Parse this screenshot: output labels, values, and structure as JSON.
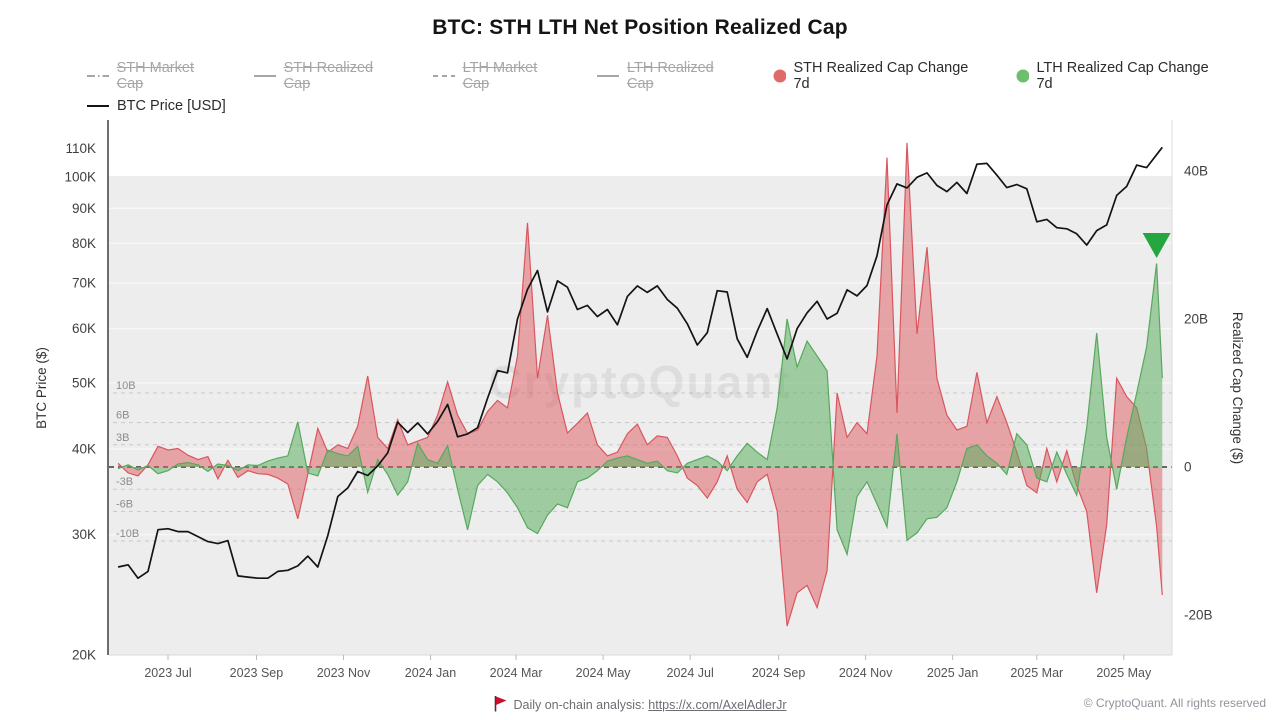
{
  "title": "BTC: STH LTH Net Position Realized Cap",
  "legend": {
    "items": [
      {
        "label": "STH Market Cap",
        "state": "disabled",
        "marker": "line-dashdot"
      },
      {
        "label": "STH Realized Cap",
        "state": "disabled",
        "marker": "line-solid"
      },
      {
        "label": "LTH Market Cap",
        "state": "disabled",
        "marker": "line-dashed"
      },
      {
        "label": "LTH Realized Cap",
        "state": "disabled",
        "marker": "line-solid"
      },
      {
        "label": "STH Realized Cap Change 7d",
        "state": "active",
        "marker": "circle-red"
      },
      {
        "label": "LTH Realized Cap Change 7d",
        "state": "active",
        "marker": "circle-green"
      },
      {
        "label": "BTC Price [USD]",
        "state": "active",
        "marker": "line-black"
      }
    ]
  },
  "watermark": "CryptoQuant",
  "footer": {
    "note": "Daily on-chain analysis:",
    "link": "https://x.com/AxelAdlerJr",
    "copyright": "© CryptoQuant. All rights reserved",
    "flag_icon": "red-flag"
  },
  "colors": {
    "sth_red_stroke": "#d9565e",
    "sth_red_fill": "rgba(222,89,96,0.5)",
    "lth_green_stroke": "#57a85e",
    "lth_green_fill": "rgba(95,174,99,0.55)",
    "price_line": "#141414",
    "signal_triangle": "#26a641",
    "plot_band": "#ededed",
    "grid_white": "#f8f8f8",
    "grid_dashed": "#c8c8c8",
    "legend_red_dot": "#e06a6a",
    "legend_green_dot": "#6cbf6c",
    "disabled_gray": "#a6a6a6"
  },
  "axes": {
    "left": {
      "title": "BTC Price ($)",
      "scale": "log",
      "ticks": [
        {
          "label": "110K",
          "value": 110000
        },
        {
          "label": "100K",
          "value": 100000
        },
        {
          "label": "90K",
          "value": 90000
        },
        {
          "label": "80K",
          "value": 80000
        },
        {
          "label": "70K",
          "value": 70000
        },
        {
          "label": "60K",
          "value": 60000
        },
        {
          "label": "50K",
          "value": 50000
        },
        {
          "label": "40K",
          "value": 40000
        },
        {
          "label": "30K",
          "value": 30000
        },
        {
          "label": "20K",
          "value": 20000
        }
      ]
    },
    "right": {
      "title": "Realized Cap Change ($)",
      "scale": "linear",
      "ticks": [
        {
          "label": "40B",
          "value": 40
        },
        {
          "label": "20B",
          "value": 20
        },
        {
          "label": "0",
          "value": 0
        },
        {
          "label": "-20B",
          "value": -20
        }
      ]
    },
    "inner_gridlines": [
      {
        "label": "10B",
        "value": 10
      },
      {
        "label": "6B",
        "value": 6
      },
      {
        "label": "3B",
        "value": 3
      },
      {
        "label": "-3B",
        "value": -3
      },
      {
        "label": "-6B",
        "value": -6
      },
      {
        "label": "-10B",
        "value": -10
      }
    ],
    "x": {
      "ticks": [
        {
          "label": "2023 Jul",
          "date": "2023-07-01"
        },
        {
          "label": "2023 Sep",
          "date": "2023-09-01"
        },
        {
          "label": "2023 Nov",
          "date": "2023-11-01"
        },
        {
          "label": "2024 Jan",
          "date": "2024-01-01"
        },
        {
          "label": "2024 Mar",
          "date": "2024-03-01"
        },
        {
          "label": "2024 May",
          "date": "2024-05-01"
        },
        {
          "label": "2024 Jul",
          "date": "2024-07-01"
        },
        {
          "label": "2024 Sep",
          "date": "2024-09-01"
        },
        {
          "label": "2024 Nov",
          "date": "2024-11-01"
        },
        {
          "label": "2025 Jan",
          "date": "2025-01-01"
        },
        {
          "label": "2025 Mar",
          "date": "2025-03-01"
        },
        {
          "label": "2025 May",
          "date": "2025-05-01"
        }
      ]
    }
  },
  "chart_data": {
    "type": "mixed",
    "note": "weekly resolution; price in USD thousands (log left axis 20K-110K); sth/lth in billions USD (linear right axis, 7d realized-cap change areas)",
    "x_range": [
      "2023-05-27",
      "2025-05-28"
    ],
    "dates": [
      "2023-05-27",
      "2023-06-03",
      "2023-06-10",
      "2023-06-17",
      "2023-06-24",
      "2023-07-01",
      "2023-07-08",
      "2023-07-15",
      "2023-07-22",
      "2023-07-29",
      "2023-08-05",
      "2023-08-12",
      "2023-08-19",
      "2023-08-26",
      "2023-09-02",
      "2023-09-09",
      "2023-09-16",
      "2023-09-23",
      "2023-09-30",
      "2023-10-07",
      "2023-10-14",
      "2023-10-21",
      "2023-10-28",
      "2023-11-04",
      "2023-11-11",
      "2023-11-18",
      "2023-11-25",
      "2023-12-02",
      "2023-12-09",
      "2023-12-16",
      "2023-12-23",
      "2023-12-30",
      "2024-01-06",
      "2024-01-13",
      "2024-01-20",
      "2024-01-27",
      "2024-02-03",
      "2024-02-10",
      "2024-02-17",
      "2024-02-24",
      "2024-03-02",
      "2024-03-09",
      "2024-03-16",
      "2024-03-23",
      "2024-03-30",
      "2024-04-06",
      "2024-04-13",
      "2024-04-20",
      "2024-04-27",
      "2024-05-04",
      "2024-05-11",
      "2024-05-18",
      "2024-05-25",
      "2024-06-01",
      "2024-06-08",
      "2024-06-15",
      "2024-06-22",
      "2024-06-29",
      "2024-07-06",
      "2024-07-13",
      "2024-07-20",
      "2024-07-27",
      "2024-08-03",
      "2024-08-10",
      "2024-08-17",
      "2024-08-24",
      "2024-08-31",
      "2024-09-07",
      "2024-09-14",
      "2024-09-21",
      "2024-09-28",
      "2024-10-05",
      "2024-10-12",
      "2024-10-19",
      "2024-10-26",
      "2024-11-02",
      "2024-11-09",
      "2024-11-16",
      "2024-11-23",
      "2024-11-30",
      "2024-12-07",
      "2024-12-14",
      "2024-12-21",
      "2024-12-28",
      "2025-01-04",
      "2025-01-11",
      "2025-01-18",
      "2025-01-25",
      "2025-02-01",
      "2025-02-08",
      "2025-02-15",
      "2025-02-22",
      "2025-03-01",
      "2025-03-08",
      "2025-03-15",
      "2025-03-22",
      "2025-03-29",
      "2025-04-05",
      "2025-04-12",
      "2025-04-19",
      "2025-04-26",
      "2025-05-03",
      "2025-05-10",
      "2025-05-17",
      "2025-05-24",
      "2025-05-28"
    ],
    "series": [
      {
        "name": "BTC Price [USD]",
        "unit": "K USD",
        "values": [
          26.9,
          27.1,
          25.9,
          26.5,
          30.5,
          30.6,
          30.3,
          30.3,
          29.8,
          29.3,
          29.1,
          29.4,
          26.1,
          26.0,
          25.9,
          25.9,
          26.5,
          26.6,
          27.0,
          27.9,
          26.9,
          29.9,
          34.1,
          35.1,
          37.1,
          36.6,
          37.8,
          39.5,
          43.8,
          42.3,
          43.7,
          42.1,
          43.9,
          46.5,
          41.7,
          42.1,
          43.0,
          47.5,
          52.1,
          51.7,
          62.0,
          68.5,
          73.0,
          63.5,
          70.5,
          69.0,
          64.0,
          64.9,
          62.5,
          64.0,
          60.8,
          66.9,
          69.3,
          67.8,
          69.3,
          66.2,
          64.3,
          61.0,
          56.8,
          59.2,
          68.2,
          67.9,
          58.0,
          54.5,
          59.5,
          64.2,
          58.9,
          54.2,
          60.0,
          63.3,
          65.8,
          62.0,
          63.2,
          68.4,
          67.0,
          69.4,
          76.7,
          91.0,
          97.7,
          96.4,
          99.9,
          101.4,
          97.2,
          95.2,
          98.2,
          94.6,
          104.4,
          104.7,
          100.6,
          96.5,
          97.5,
          96.1,
          86.0,
          86.7,
          84.3,
          84.0,
          82.6,
          79.5,
          83.5,
          85.1,
          94.0,
          96.9,
          104.1,
          103.2,
          107.8,
          110.5
        ]
      },
      {
        "name": "STH Realized Cap Change 7d",
        "unit": "B USD",
        "values": [
          0.5,
          -0.8,
          -1.2,
          0.3,
          2.8,
          2.3,
          2.5,
          1.6,
          1.0,
          1.4,
          -1.6,
          0.9,
          -1.4,
          -0.5,
          -0.9,
          -1.0,
          -1.5,
          -2.3,
          -7.0,
          -1.0,
          5.2,
          2.0,
          3.0,
          2.5,
          5.5,
          12.3,
          4.0,
          2.5,
          6.4,
          3.0,
          3.5,
          4.0,
          7.0,
          11.5,
          7.0,
          4.5,
          5.0,
          7.5,
          9.0,
          8.0,
          15.0,
          33.0,
          12.0,
          20.5,
          10.0,
          4.6,
          5.9,
          7.3,
          3.0,
          1.5,
          2.0,
          4.5,
          5.8,
          3.0,
          4.2,
          4.0,
          1.5,
          -1.5,
          -2.5,
          -4.2,
          -2.0,
          1.5,
          -3.0,
          -4.8,
          -2.0,
          -1.0,
          -6.0,
          -21.5,
          -17.0,
          -16.0,
          -19.0,
          -14.0,
          10.0,
          4.0,
          6.0,
          4.5,
          15.0,
          41.8,
          7.3,
          43.8,
          18.0,
          29.7,
          12.0,
          7.0,
          5.0,
          5.5,
          12.8,
          6.0,
          9.5,
          6.0,
          2.0,
          -2.5,
          -3.5,
          2.5,
          -2.0,
          2.2,
          -2.5,
          -6.0,
          -17.0,
          -7.8,
          12.0,
          9.5,
          8.0,
          2.5,
          -8.0,
          -17.3
        ]
      },
      {
        "name": "LTH Realized Cap Change 7d",
        "unit": "B USD",
        "values": [
          -0.2,
          0.3,
          -0.4,
          0.2,
          -0.9,
          -0.5,
          0.4,
          0.6,
          0.3,
          -0.6,
          0.4,
          0.2,
          -0.5,
          0.3,
          0.2,
          0.8,
          1.2,
          1.5,
          6.1,
          -0.8,
          -1.2,
          2.3,
          1.8,
          1.5,
          2.8,
          -3.4,
          1.0,
          -1.0,
          -3.8,
          -2.0,
          3.2,
          1.0,
          0.5,
          2.9,
          -3.0,
          -8.5,
          -2.5,
          -1.0,
          -2.0,
          -3.5,
          -5.5,
          -8.2,
          -9.0,
          -6.5,
          -5.0,
          -5.5,
          -2.0,
          -1.5,
          -0.5,
          0.8,
          1.2,
          1.5,
          1.0,
          0.5,
          0.8,
          -0.5,
          -0.8,
          0.5,
          1.0,
          1.5,
          0.8,
          -0.5,
          1.5,
          3.2,
          2.0,
          1.0,
          8.0,
          20.0,
          13.5,
          17.0,
          15.0,
          13.0,
          -8.5,
          -11.8,
          -4.0,
          -2.0,
          -5.0,
          -8.1,
          4.5,
          -9.9,
          -8.9,
          -7.0,
          -6.8,
          -5.5,
          -2.0,
          2.5,
          3.0,
          1.5,
          0.5,
          -1.0,
          4.5,
          3.0,
          -1.5,
          -2.0,
          2.0,
          -1.0,
          -3.8,
          5.3,
          18.1,
          4.0,
          -3.0,
          4.0,
          10.0,
          16.2,
          27.5,
          12.0
        ]
      }
    ],
    "annotations": [
      {
        "type": "triangle-down",
        "date": "2025-05-24",
        "color": "#26a641",
        "meaning": "signal marker above final LTH spike"
      }
    ],
    "left_axis_range_usd": [
      20000,
      110000
    ],
    "right_axis_range_b": [
      -25,
      45
    ],
    "zero_line": "black dashed",
    "grid": "dashed ±3B/±6B/±10B labeled inline"
  }
}
